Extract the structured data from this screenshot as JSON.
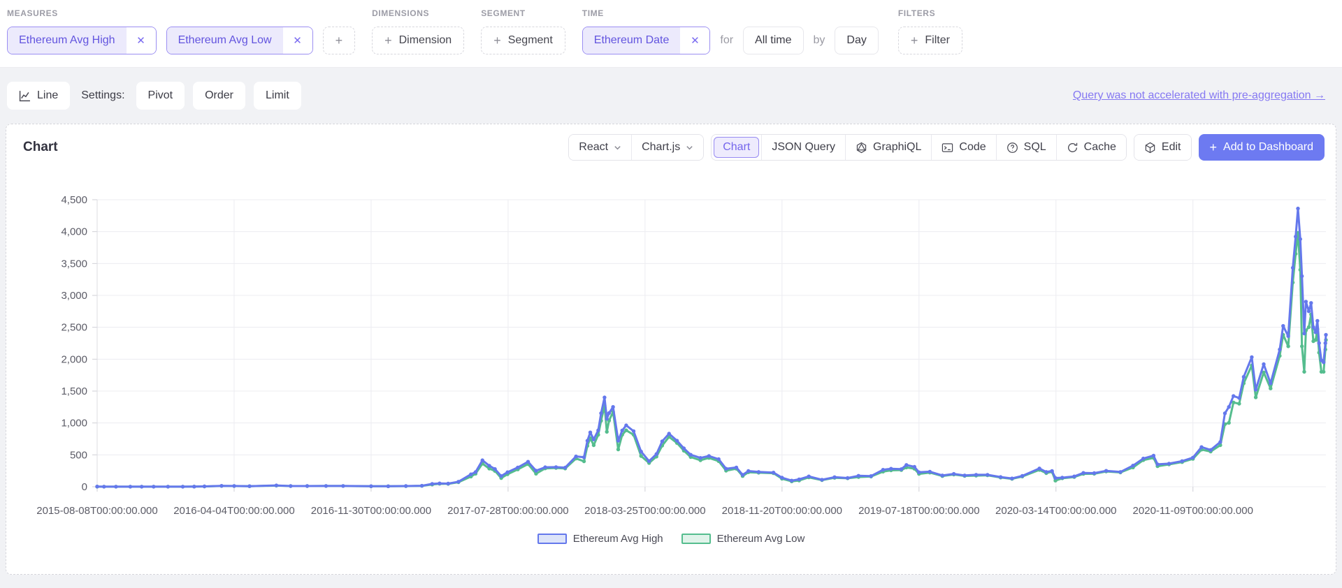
{
  "icons": {
    "plus": "+",
    "close": "✕",
    "arrow": "→"
  },
  "query_builder": {
    "measures": {
      "label": "MEASURES",
      "items": [
        {
          "label": "Ethereum Avg High"
        },
        {
          "label": "Ethereum Avg Low"
        }
      ]
    },
    "dimensions": {
      "label": "DIMENSIONS",
      "add_label": "Dimension"
    },
    "segment": {
      "label": "SEGMENT",
      "add_label": "Segment"
    },
    "time": {
      "label": "TIME",
      "member": "Ethereum Date",
      "for_label": "for",
      "range": "All time",
      "by_label": "by",
      "granularity": "Day"
    },
    "filters": {
      "label": "FILTERS",
      "add_label": "Filter"
    }
  },
  "toolbar": {
    "chart_type": "Line",
    "settings_label": "Settings:",
    "pivot": "Pivot",
    "order": "Order",
    "limit": "Limit",
    "preagg_link": "Query was not accelerated with pre-aggregation →"
  },
  "chart_panel": {
    "title": "Chart",
    "framework": "React",
    "library": "Chart.js",
    "tabs": [
      {
        "label": "Chart",
        "selected": true
      },
      {
        "label": "JSON Query"
      },
      {
        "label": "GraphiQL"
      },
      {
        "label": "Code"
      },
      {
        "label": "SQL"
      },
      {
        "label": "Cache"
      }
    ],
    "edit_label": "Edit",
    "add_to_dashboard": "Add to Dashboard"
  },
  "chart_data": {
    "type": "line",
    "title": "",
    "xlabel": "",
    "ylabel": "",
    "ylim": [
      0,
      4500
    ],
    "grid": true,
    "legend_position": "bottom",
    "ytick_labels": [
      "0",
      "500",
      "1,000",
      "1,500",
      "2,000",
      "2,500",
      "3,000",
      "3,500",
      "4,000",
      "4,500"
    ],
    "xtick_labels": [
      "2015-08-08T00:00:00.000",
      "2016-04-04T00:00:00.000",
      "2016-11-30T00:00:00.000",
      "2017-07-28T00:00:00.000",
      "2018-03-25T00:00:00.000",
      "2018-11-20T00:00:00.000",
      "2019-07-18T00:00:00.000",
      "2020-03-14T00:00:00.000",
      "2020-11-09T00:00:00.000"
    ],
    "series_meta": [
      {
        "name": "Ethereum Avg High",
        "color": "#6478ec",
        "fill": "#dde4f9"
      },
      {
        "name": "Ethereum Avg Low",
        "color": "#55bd8e",
        "fill": "#e0f3ea"
      }
    ],
    "points_format": [
      "date",
      "avg_high_usd",
      "avg_low_usd"
    ],
    "points": [
      [
        "2015-08-08",
        3,
        1
      ],
      [
        "2015-08-20",
        1.5,
        1.2
      ],
      [
        "2015-09-10",
        1.2,
        1.0
      ],
      [
        "2015-10-05",
        0.7,
        0.6
      ],
      [
        "2015-10-25",
        1.0,
        0.85
      ],
      [
        "2015-11-15",
        0.95,
        0.85
      ],
      [
        "2015-12-10",
        0.85,
        0.78
      ],
      [
        "2016-01-05",
        0.95,
        0.9
      ],
      [
        "2016-01-25",
        2.4,
        2.1
      ],
      [
        "2016-02-12",
        5.5,
        4.8
      ],
      [
        "2016-03-13",
        14.5,
        12.0
      ],
      [
        "2016-04-04",
        11.8,
        11.0
      ],
      [
        "2016-05-01",
        9.2,
        8.7
      ],
      [
        "2016-06-17",
        20.5,
        17.0
      ],
      [
        "2016-07-12",
        11.4,
        10.6
      ],
      [
        "2016-08-10",
        11.2,
        10.8
      ],
      [
        "2016-09-12",
        12.0,
        11.5
      ],
      [
        "2016-10-12",
        12.1,
        11.7
      ],
      [
        "2016-11-30",
        8.6,
        8.0
      ],
      [
        "2016-12-30",
        8.2,
        7.7
      ],
      [
        "2017-01-30",
        10.7,
        10.1
      ],
      [
        "2017-02-27",
        15.8,
        14.6
      ],
      [
        "2017-03-17",
        45,
        35
      ],
      [
        "2017-03-30",
        53,
        47
      ],
      [
        "2017-04-14",
        49,
        45
      ],
      [
        "2017-05-02",
        79,
        71
      ],
      [
        "2017-05-24",
        195,
        160
      ],
      [
        "2017-06-01",
        230,
        205
      ],
      [
        "2017-06-13",
        415,
        362
      ],
      [
        "2017-06-25",
        330,
        285
      ],
      [
        "2017-07-05",
        278,
        248
      ],
      [
        "2017-07-16",
        168,
        136
      ],
      [
        "2017-07-27",
        228,
        196
      ],
      [
        "2017-08-14",
        302,
        272
      ],
      [
        "2017-09-01",
        392,
        355
      ],
      [
        "2017-09-15",
        252,
        205
      ],
      [
        "2017-10-01",
        305,
        288
      ],
      [
        "2017-10-20",
        308,
        294
      ],
      [
        "2017-11-05",
        300,
        286
      ],
      [
        "2017-11-24",
        475,
        442
      ],
      [
        "2017-12-08",
        462,
        398
      ],
      [
        "2017-12-14",
        722,
        640
      ],
      [
        "2017-12-19",
        852,
        762
      ],
      [
        "2017-12-25",
        742,
        652
      ],
      [
        "2018-01-02",
        885,
        815
      ],
      [
        "2018-01-07",
        1153,
        1035
      ],
      [
        "2018-01-13",
        1400,
        1272
      ],
      [
        "2018-01-17",
        1065,
        862
      ],
      [
        "2018-01-21",
        1155,
        1038
      ],
      [
        "2018-01-28",
        1252,
        1175
      ],
      [
        "2018-02-06",
        722,
        585
      ],
      [
        "2018-02-13",
        882,
        815
      ],
      [
        "2018-02-20",
        962,
        885
      ],
      [
        "2018-03-05",
        872,
        815
      ],
      [
        "2018-03-18",
        552,
        482
      ],
      [
        "2018-04-01",
        402,
        372
      ],
      [
        "2018-04-14",
        512,
        472
      ],
      [
        "2018-04-24",
        712,
        645
      ],
      [
        "2018-05-06",
        832,
        782
      ],
      [
        "2018-05-20",
        722,
        685
      ],
      [
        "2018-06-01",
        602,
        565
      ],
      [
        "2018-06-13",
        502,
        465
      ],
      [
        "2018-06-30",
        452,
        415
      ],
      [
        "2018-07-15",
        482,
        452
      ],
      [
        "2018-08-01",
        432,
        402
      ],
      [
        "2018-08-14",
        282,
        252
      ],
      [
        "2018-09-01",
        302,
        282
      ],
      [
        "2018-09-12",
        186,
        168
      ],
      [
        "2018-09-22",
        246,
        228
      ],
      [
        "2018-10-10",
        232,
        220
      ],
      [
        "2018-11-05",
        222,
        212
      ],
      [
        "2018-11-20",
        142,
        126
      ],
      [
        "2018-12-07",
        96,
        84
      ],
      [
        "2018-12-20",
        116,
        97
      ],
      [
        "2019-01-06",
        162,
        147
      ],
      [
        "2019-01-29",
        110,
        104
      ],
      [
        "2019-02-20",
        150,
        140
      ],
      [
        "2019-03-15",
        137,
        132
      ],
      [
        "2019-04-03",
        172,
        152
      ],
      [
        "2019-04-25",
        167,
        160
      ],
      [
        "2019-05-16",
        266,
        236
      ],
      [
        "2019-05-30",
        282,
        257
      ],
      [
        "2019-06-17",
        276,
        262
      ],
      [
        "2019-06-26",
        342,
        302
      ],
      [
        "2019-07-10",
        312,
        282
      ],
      [
        "2019-07-18",
        227,
        202
      ],
      [
        "2019-08-06",
        237,
        222
      ],
      [
        "2019-08-28",
        177,
        167
      ],
      [
        "2019-09-17",
        202,
        192
      ],
      [
        "2019-10-06",
        177,
        170
      ],
      [
        "2019-10-26",
        187,
        174
      ],
      [
        "2019-11-15",
        187,
        180
      ],
      [
        "2019-12-08",
        152,
        145
      ],
      [
        "2019-12-28",
        130,
        124
      ],
      [
        "2020-01-15",
        170,
        160
      ],
      [
        "2020-02-14",
        287,
        264
      ],
      [
        "2020-02-26",
        232,
        214
      ],
      [
        "2020-03-07",
        247,
        234
      ],
      [
        "2020-03-13",
        137,
        96
      ],
      [
        "2020-03-25",
        142,
        132
      ],
      [
        "2020-04-15",
        162,
        152
      ],
      [
        "2020-05-01",
        217,
        202
      ],
      [
        "2020-05-20",
        214,
        204
      ],
      [
        "2020-06-10",
        250,
        240
      ],
      [
        "2020-07-05",
        232,
        224
      ],
      [
        "2020-07-27",
        332,
        302
      ],
      [
        "2020-08-14",
        442,
        417
      ],
      [
        "2020-09-01",
        487,
        452
      ],
      [
        "2020-09-08",
        352,
        322
      ],
      [
        "2020-09-28",
        362,
        350
      ],
      [
        "2020-10-21",
        402,
        387
      ],
      [
        "2020-11-09",
        457,
        437
      ],
      [
        "2020-11-24",
        622,
        582
      ],
      [
        "2020-12-10",
        577,
        552
      ],
      [
        "2020-12-27",
        702,
        652
      ],
      [
        "2021-01-04",
        1152,
        982
      ],
      [
        "2021-01-11",
        1252,
        1002
      ],
      [
        "2021-01-19",
        1422,
        1322
      ],
      [
        "2021-01-29",
        1392,
        1302
      ],
      [
        "2021-02-06",
        1722,
        1622
      ],
      [
        "2021-02-20",
        2032,
        1902
      ],
      [
        "2021-02-27",
        1522,
        1402
      ],
      [
        "2021-03-13",
        1922,
        1792
      ],
      [
        "2021-03-25",
        1622,
        1542
      ],
      [
        "2021-04-10",
        2152,
        2052
      ],
      [
        "2021-04-16",
        2522,
        2382
      ],
      [
        "2021-04-25",
        2362,
        2202
      ],
      [
        "2021-05-03",
        3432,
        3202
      ],
      [
        "2021-05-08",
        3922,
        3652
      ],
      [
        "2021-05-12",
        4362,
        3982
      ],
      [
        "2021-05-16",
        3882,
        3402
      ],
      [
        "2021-05-19",
        3302,
        2202
      ],
      [
        "2021-05-23",
        2402,
        1802
      ],
      [
        "2021-05-26",
        2902,
        2452
      ],
      [
        "2021-05-31",
        2752,
        2502
      ],
      [
        "2021-06-04",
        2882,
        2702
      ],
      [
        "2021-06-08",
        2502,
        2282
      ],
      [
        "2021-06-12",
        2422,
        2302
      ],
      [
        "2021-06-15",
        2602,
        2472
      ],
      [
        "2021-06-18",
        2252,
        2102
      ],
      [
        "2021-06-22",
        1982,
        1802
      ],
      [
        "2021-06-26",
        1952,
        1802
      ],
      [
        "2021-06-29",
        2252,
        2152
      ],
      [
        "2021-06-30",
        2382,
        2302
      ]
    ]
  }
}
